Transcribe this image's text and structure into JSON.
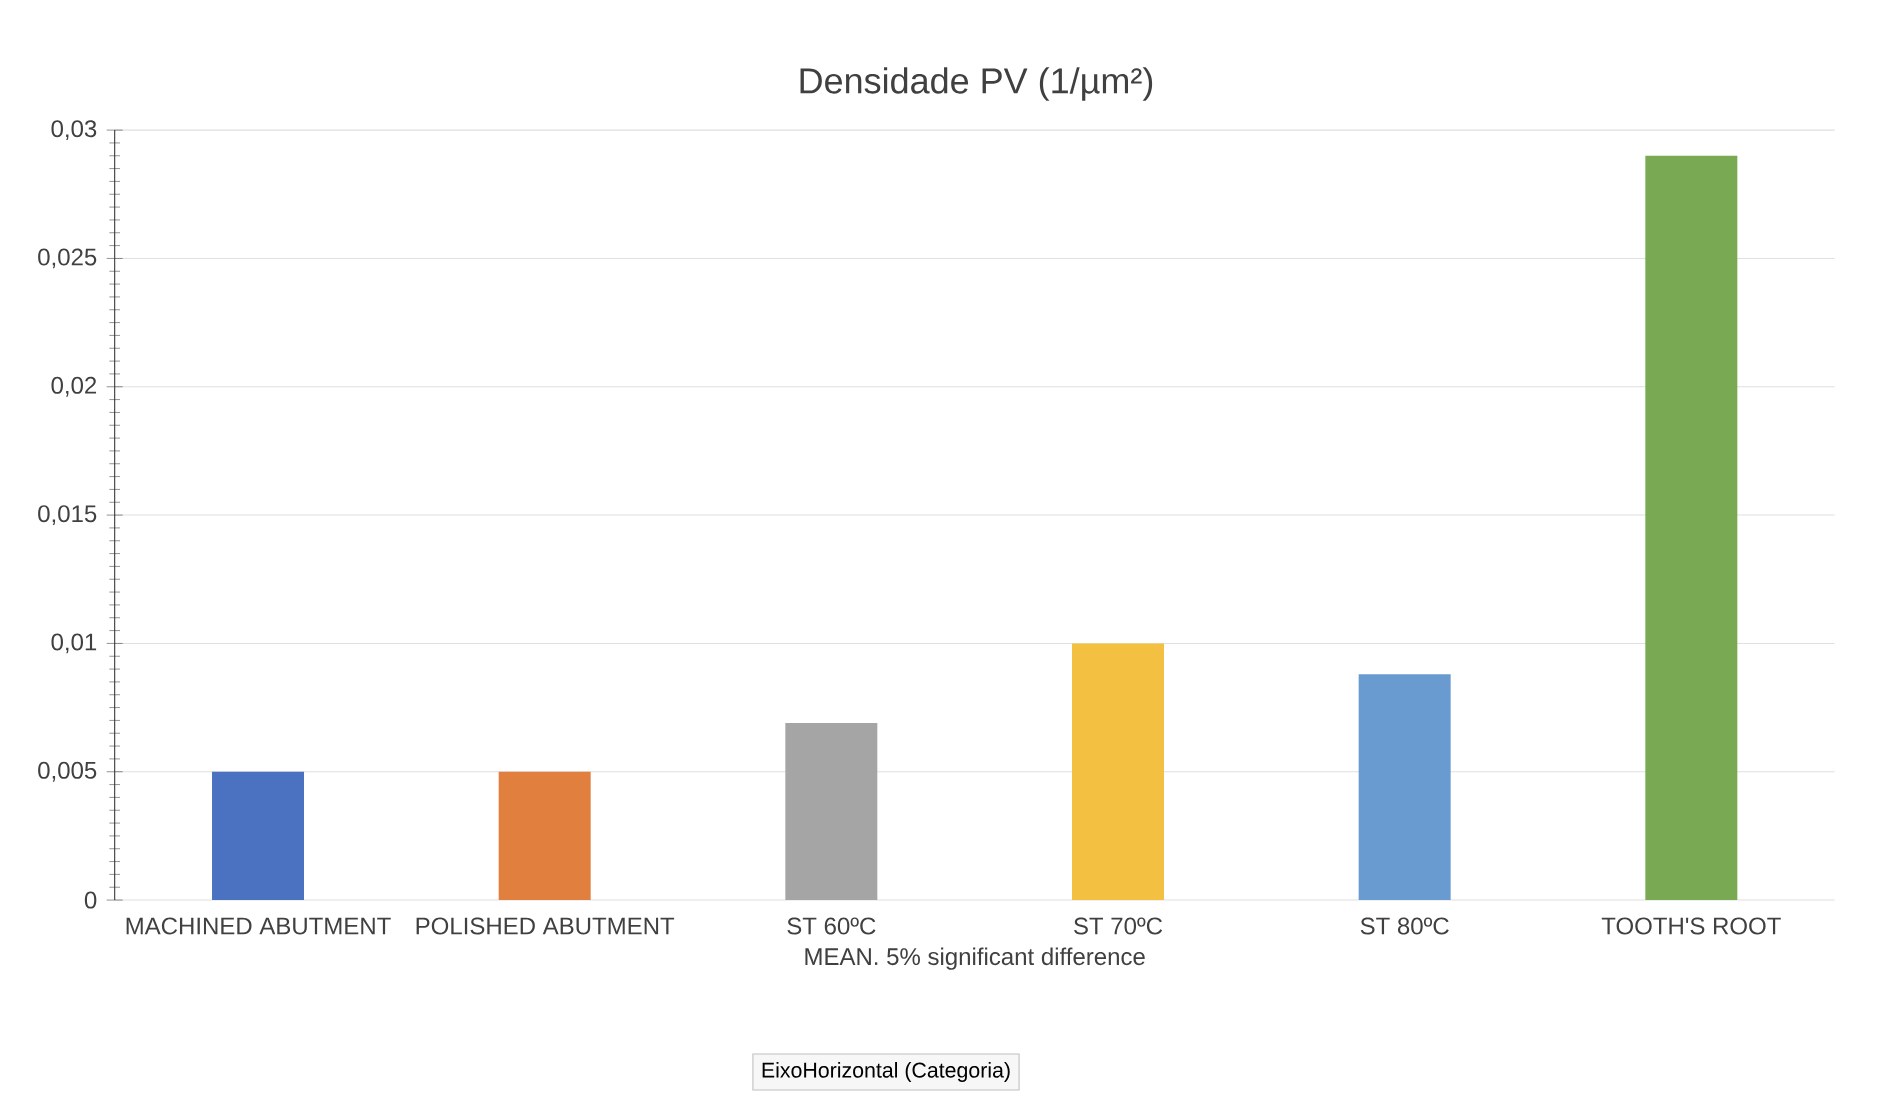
{
  "chart_data": {
    "type": "bar",
    "title": "Densidade PV (1/µm²)",
    "xlabel": "MEAN. 5% significant difference",
    "categories": [
      "MACHINED ABUTMENT",
      "POLISHED ABUTMENT",
      "ST 60ºC",
      "ST 70ºC",
      "ST 80ºC",
      "TOOTH'S ROOT"
    ],
    "values": [
      0.005,
      0.005,
      0.0069,
      0.01,
      0.0088,
      0.029
    ],
    "colors": [
      "#4a72c0",
      "#e07f3e",
      "#a5a5a5",
      "#f4c042",
      "#6a9bd0",
      "#7aa953"
    ],
    "ylim": [
      0,
      0.03
    ],
    "yticks": [
      {
        "value": 0,
        "label": "0"
      },
      {
        "value": 0.005,
        "label": "0,005"
      },
      {
        "value": 0.01,
        "label": "0,01"
      },
      {
        "value": 0.015,
        "label": "0,015"
      },
      {
        "value": 0.02,
        "label": "0,02"
      },
      {
        "value": 0.025,
        "label": "0,025"
      },
      {
        "value": 0.03,
        "label": "0,03"
      }
    ],
    "grid": "y",
    "annotations": [
      "EixoHorizontal (Categoria)"
    ]
  }
}
